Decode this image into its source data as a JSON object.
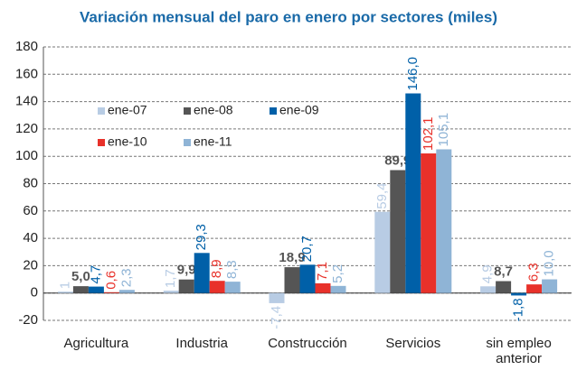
{
  "chart_data": {
    "type": "bar",
    "title": "Variación mensual del paro en enero por sectores (miles)",
    "categories": [
      "Agricultura",
      "Industria",
      "Construcción",
      "Servicios",
      "sin empleo anterior"
    ],
    "series": [
      {
        "name": "ene-07",
        "color": "#b8cce4",
        "values": [
          1,
          1.7,
          -7.4,
          59.4,
          4.9
        ],
        "value_labels": [
          "1",
          "1,7",
          "-7,4",
          "59,4",
          "4,9"
        ]
      },
      {
        "name": "ene-08",
        "color": "#555555",
        "values": [
          5.0,
          9.9,
          18.9,
          89.9,
          8.7
        ],
        "value_labels": [
          "5,0",
          "9,9",
          "18,9",
          "89,9",
          "8,7"
        ]
      },
      {
        "name": "ene-09",
        "color": "#0060a8",
        "values": [
          4.7,
          29.3,
          20.7,
          146.0,
          -1.8
        ],
        "value_labels": [
          "4,7",
          "29,3",
          "20,7",
          "146,0",
          "-1,8"
        ]
      },
      {
        "name": "ene-10",
        "color": "#e8312a",
        "values": [
          0.6,
          8.9,
          7.1,
          102.1,
          6.3
        ],
        "value_labels": [
          "0,6",
          "8,9",
          "7,1",
          "102,1",
          "6,3"
        ]
      },
      {
        "name": "ene-11",
        "color": "#8fb4d6",
        "values": [
          2.3,
          8.3,
          5.2,
          105.1,
          10.0
        ],
        "value_labels": [
          "2,3",
          "8,3",
          "5,2",
          "105,1",
          "10,0"
        ]
      }
    ],
    "ylim": [
      -20,
      180
    ],
    "yticks": [
      -20,
      0,
      20,
      40,
      60,
      80,
      100,
      120,
      140,
      160,
      180
    ],
    "grid": true
  }
}
